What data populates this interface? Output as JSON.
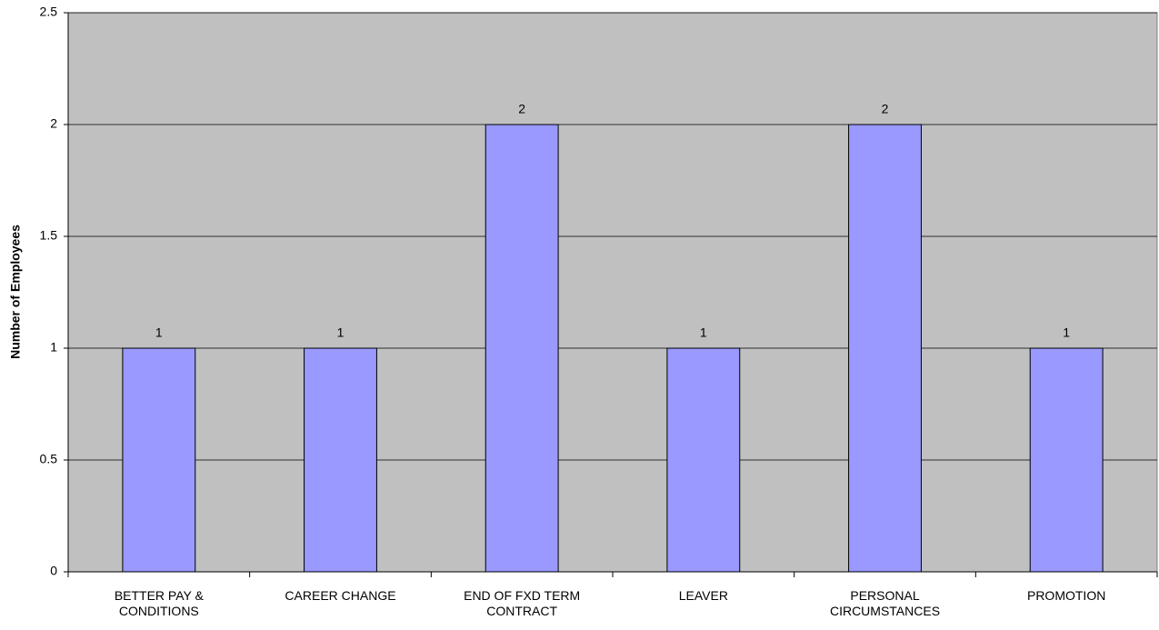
{
  "chart_data": {
    "type": "bar",
    "y_label": "Number of Employees",
    "categories": [
      "BETTER PAY & CONDITIONS",
      "CAREER CHANGE",
      "END OF FXD TERM CONTRACT",
      "LEAVER",
      "PERSONAL CIRCUMSTANCES",
      "PROMOTION"
    ],
    "values": [
      1,
      1,
      2,
      1,
      2,
      1
    ],
    "color": "#9999ff",
    "background": "#c0c0c0",
    "ylim": [
      0,
      2.5
    ],
    "yticks": [
      0,
      0.5,
      1,
      1.5,
      2,
      2.5
    ],
    "grid": true
  }
}
